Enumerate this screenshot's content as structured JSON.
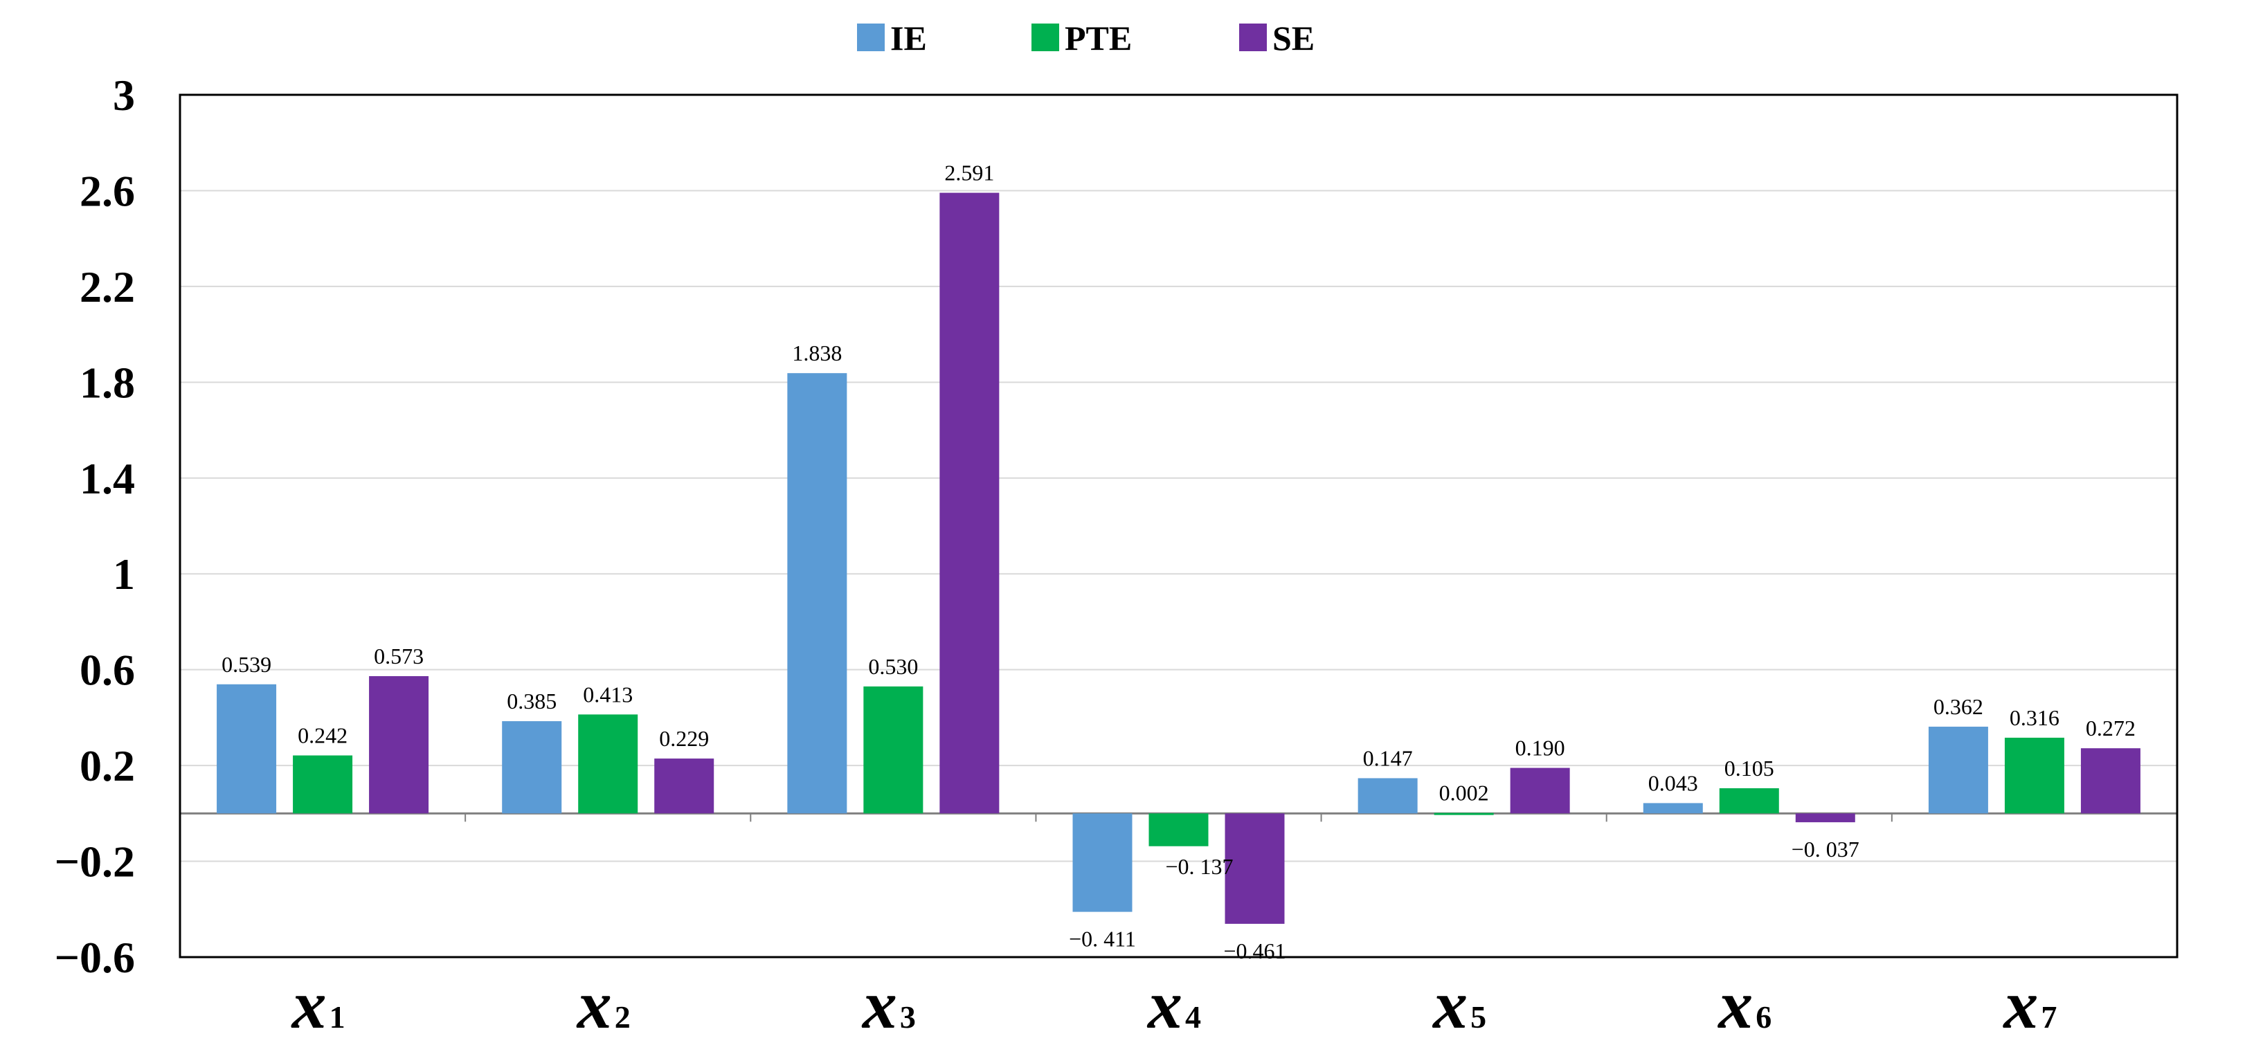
{
  "chart_data": {
    "type": "bar",
    "title": "",
    "xlabel": "",
    "ylabel": "",
    "ylim": [
      -0.6,
      3
    ],
    "yticks": [
      "3",
      "2.6",
      "2.2",
      "1.8",
      "1.4",
      "1",
      "0.6",
      "0.2",
      "−0.2",
      "−0.6"
    ],
    "ytick_values": [
      3,
      2.6,
      2.2,
      1.8,
      1.4,
      1,
      0.6,
      0.2,
      -0.2,
      -0.6
    ],
    "grid": true,
    "legend_position": "top-center",
    "categories": [
      {
        "main": "x",
        "sub": "1"
      },
      {
        "main": "x",
        "sub": "2"
      },
      {
        "main": "x",
        "sub": "3"
      },
      {
        "main": "x",
        "sub": "4"
      },
      {
        "main": "x",
        "sub": "5"
      },
      {
        "main": "x",
        "sub": "6"
      },
      {
        "main": "x",
        "sub": "7"
      }
    ],
    "series": [
      {
        "name": "IE",
        "color": "#5b9bd5",
        "values": [
          0.539,
          0.385,
          1.838,
          -0.411,
          0.147,
          0.043,
          0.362
        ],
        "labels": [
          "0.539",
          "0.385",
          "1.838",
          "−0. 411",
          "0.147",
          "0.043",
          "0.362"
        ]
      },
      {
        "name": "PTE",
        "color": "#00b050",
        "values": [
          0.242,
          0.413,
          0.53,
          -0.137,
          0.002,
          0.105,
          0.316
        ],
        "labels": [
          "0.242",
          "0.413",
          "0.530",
          "−0. 137",
          "0.002",
          "0.105",
          "0.316"
        ]
      },
      {
        "name": "SE",
        "color": "#7030a0",
        "values": [
          0.573,
          0.229,
          2.591,
          -0.461,
          0.19,
          -0.037,
          0.272
        ],
        "labels": [
          "0.573",
          "0.229",
          "2.591",
          "−0.461",
          "0.190",
          "−0. 037",
          "0.272"
        ]
      }
    ]
  },
  "colors": {
    "grid": "#d9d9d9",
    "axis": "#000000",
    "zero_line": "#808080"
  }
}
